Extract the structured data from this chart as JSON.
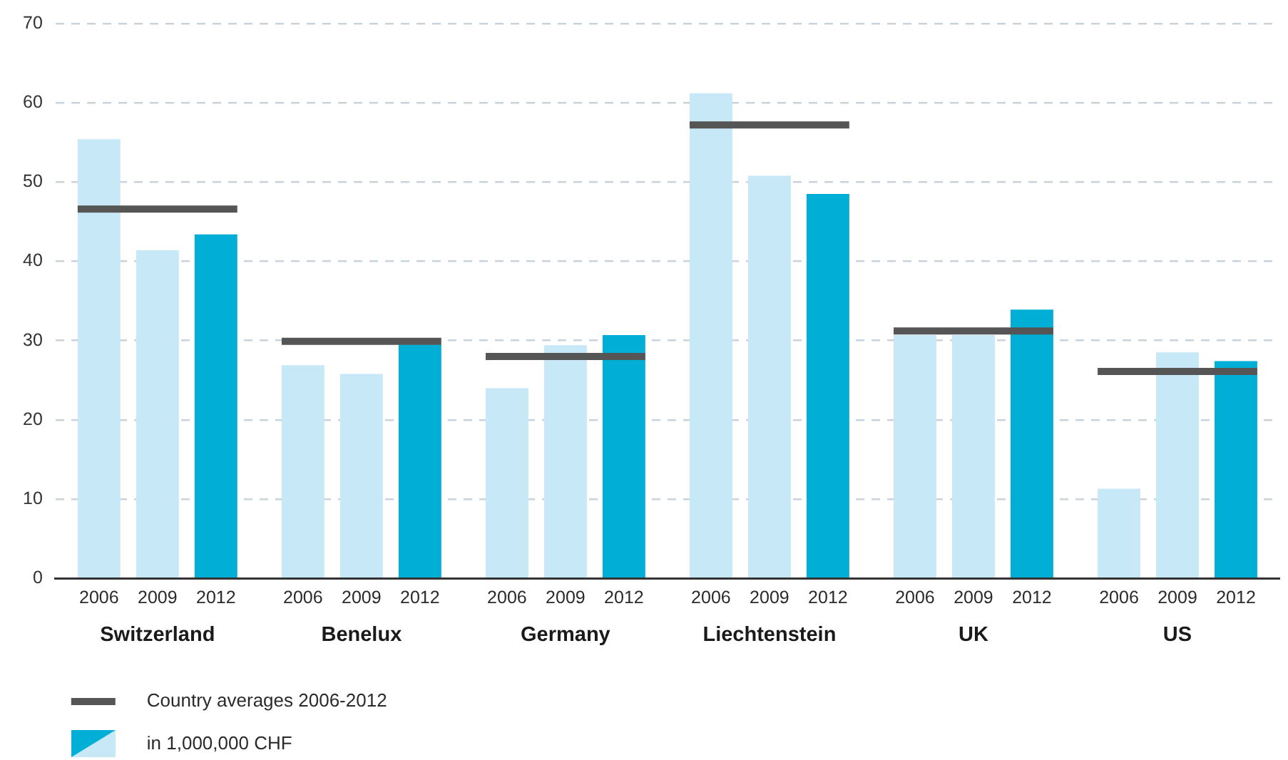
{
  "chart_data": {
    "type": "bar",
    "categories": [
      "Switzerland",
      "Benelux",
      "Germany",
      "Liechtenstein",
      "UK",
      "US"
    ],
    "series": [
      {
        "name": "2006",
        "color": "#c6e8f7",
        "values": [
          55.4,
          26.9,
          24.0,
          61.2,
          30.7,
          11.3
        ]
      },
      {
        "name": "2009",
        "color": "#c6e8f7",
        "values": [
          41.4,
          25.8,
          29.4,
          50.8,
          30.7,
          28.5
        ]
      },
      {
        "name": "2012",
        "color": "#00aed6",
        "values": [
          43.4,
          29.5,
          30.7,
          48.5,
          33.9,
          27.4
        ]
      }
    ],
    "ref_lines": [
      {
        "axis": "y",
        "value": 46.6,
        "label": "Country averages 2006-2012",
        "color": "#555555"
      },
      {
        "axis": "y",
        "value": 29.9,
        "color": "#555555"
      },
      {
        "axis": "y",
        "value": 28.0,
        "color": "#555555"
      },
      {
        "axis": "y",
        "value": 57.2,
        "color": "#555555"
      },
      {
        "axis": "y",
        "value": 31.2,
        "color": "#555555"
      },
      {
        "axis": "y",
        "value": 26.1,
        "color": "#555555"
      }
    ],
    "ylim": [
      0,
      70
    ],
    "yticks": [
      0,
      10,
      20,
      30,
      40,
      50,
      60,
      70
    ],
    "grid": "y",
    "legend": "bottom left",
    "annotations": [
      "in 1,000,000 CHF"
    ]
  }
}
